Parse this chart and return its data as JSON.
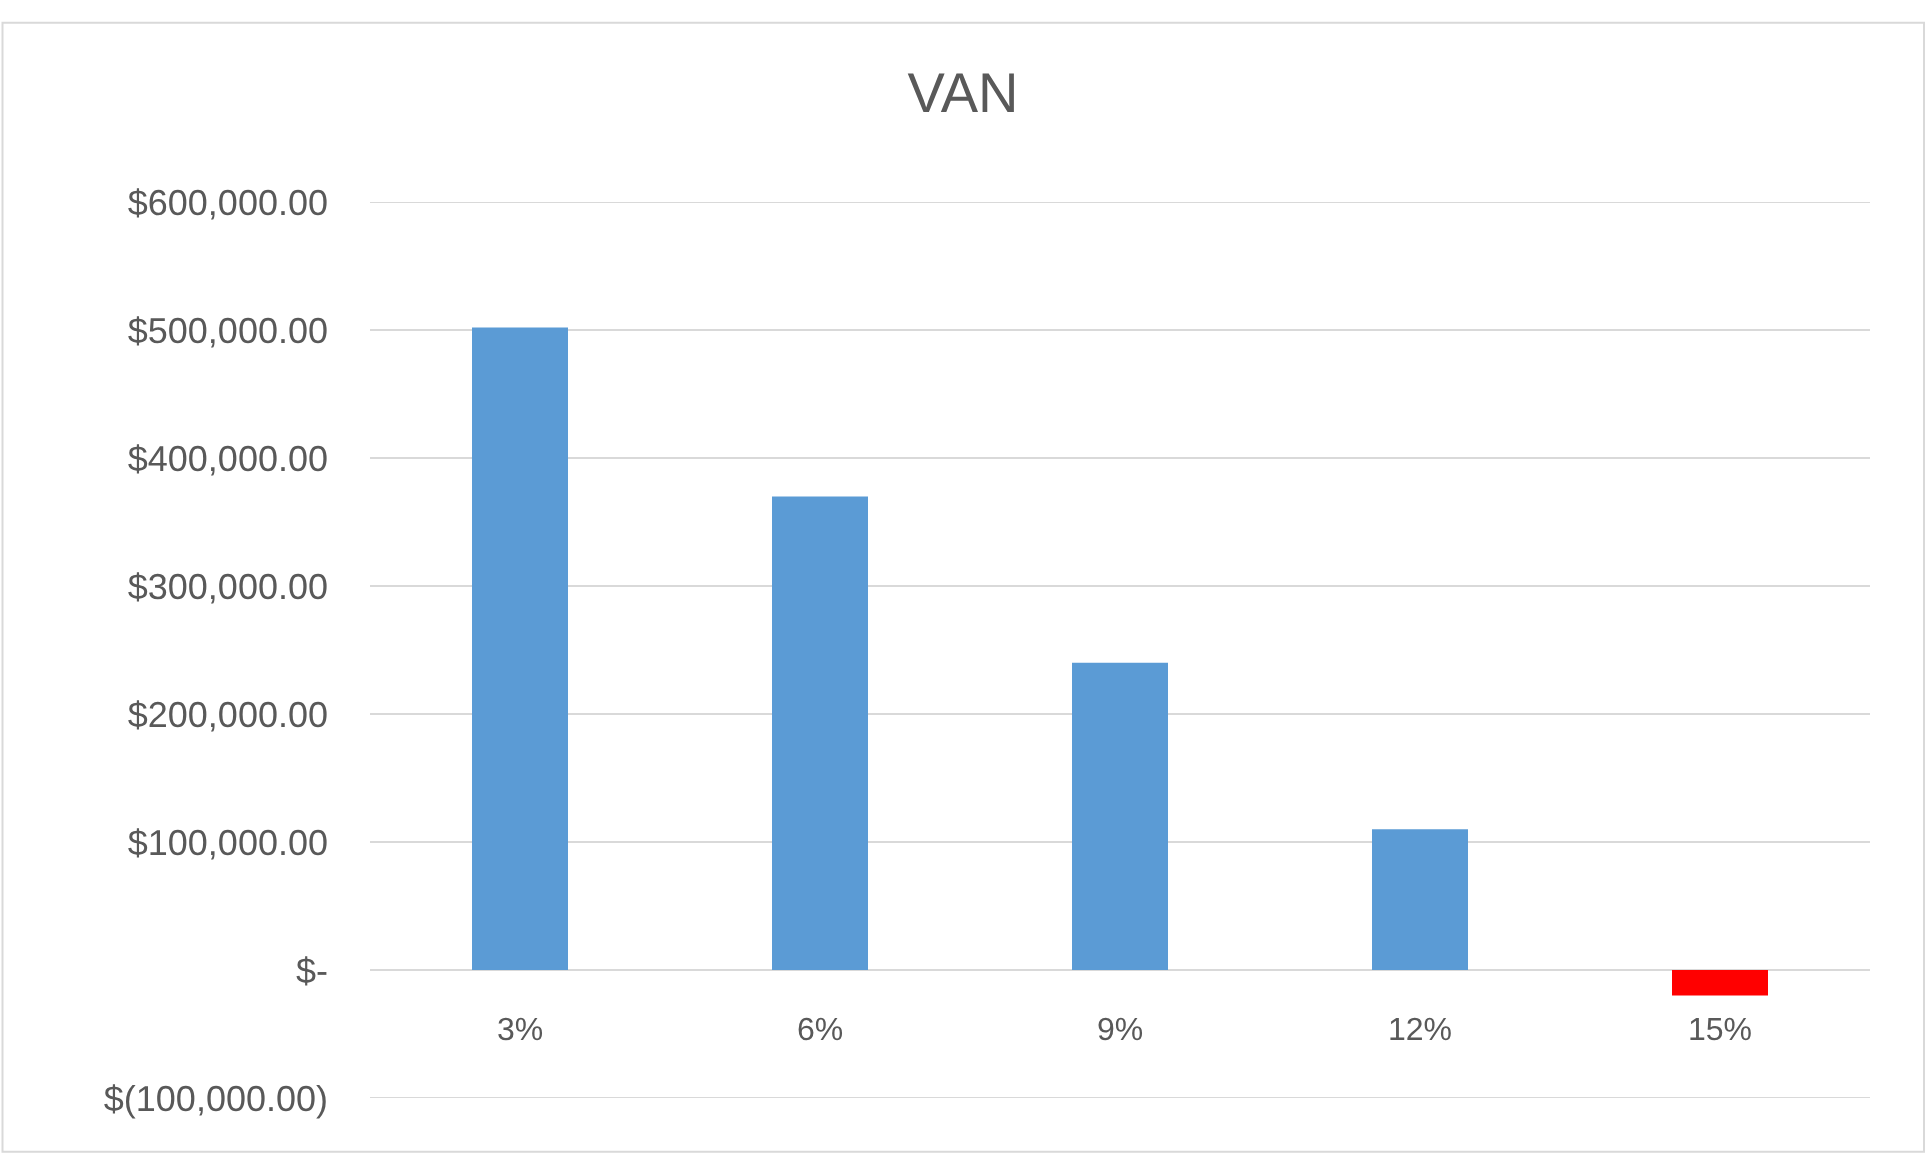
{
  "chart_data": {
    "type": "bar",
    "title": "VAN",
    "categories": [
      "3%",
      "6%",
      "9%",
      "12%",
      "15%"
    ],
    "values": [
      502000,
      370000,
      240000,
      110000,
      -20000
    ],
    "colors": [
      "#5b9bd5",
      "#5b9bd5",
      "#5b9bd5",
      "#5b9bd5",
      "#ff0000"
    ],
    "ylim": [
      -100000,
      600000
    ],
    "yticks": [
      {
        "value": -100000,
        "label": "$(100,000.00)"
      },
      {
        "value": 0,
        "label": "$-"
      },
      {
        "value": 100000,
        "label": "$100,000.00"
      },
      {
        "value": 200000,
        "label": "$200,000.00"
      },
      {
        "value": 300000,
        "label": "$300,000.00"
      },
      {
        "value": 400000,
        "label": "$400,000.00"
      },
      {
        "value": 500000,
        "label": "$500,000.00"
      },
      {
        "value": 600000,
        "label": "$600,000.00"
      }
    ],
    "grid": "y"
  }
}
